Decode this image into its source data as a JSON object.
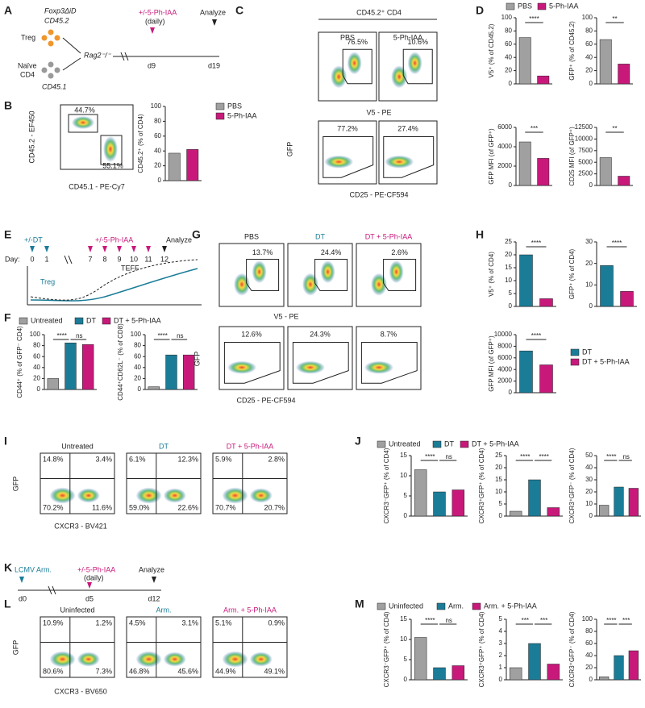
{
  "panel_labels": [
    "A",
    "B",
    "C",
    "D",
    "E",
    "F",
    "G",
    "H",
    "I",
    "J",
    "K",
    "L",
    "M"
  ],
  "schematics": {
    "A": {
      "strain": "Foxp3ΔiD",
      "donor": "CD45.2",
      "treg": "Treg",
      "naive": "Naïve",
      "cd4": "CD4",
      "congenic": "CD45.1",
      "host": "Rag2⁻/⁻",
      "treatment": "+/-5-Ph-IAA",
      "daily": "(daily)",
      "start": "d9",
      "analyze": "Analyze",
      "end": "d19"
    },
    "E": {
      "dt": "+/-DT",
      "treatment": "+/-5-Ph-IAA",
      "analyze": "Analyze",
      "day": "Day:",
      "days": [
        "0",
        "1",
        "7",
        "8",
        "9",
        "10",
        "11",
        "12"
      ],
      "treg": "Treg",
      "teff": "TEFF"
    },
    "K": {
      "infection": "LCMV Arm.",
      "treatment": "+/-5-Ph-IAA",
      "daily": "(daily)",
      "analyze": "Analyze",
      "days": [
        "d0",
        "d5",
        "d12"
      ]
    }
  },
  "flow": [
    {
      "gates": [
        [
          "44.7%",
          "55.1%"
        ]
      ],
      "x_label": "CD45.1 - PE-Cy7",
      "y_label": "CD45.2 - EF450"
    },
    {
      "title": "CD45.2⁺ CD4",
      "headers": [
        "PBS",
        "5-Ph-IAA"
      ],
      "gates": [
        [
          "76.5%"
        ],
        [
          "10.6%"
        ]
      ],
      "x_label": "V5 - PE"
    },
    {
      "gates": [
        [
          "77.2%"
        ],
        [
          "27.4%"
        ]
      ],
      "x_label": "CD25 - PE-CF594",
      "y_label": "GFP"
    },
    {
      "headers": [
        "PBS",
        "DT",
        "DT + 5-Ph-IAA"
      ],
      "gates": [
        [
          "13.7%"
        ],
        [
          "24.4%"
        ],
        [
          "2.6%"
        ]
      ],
      "x_label": "V5 - PE"
    },
    {
      "gates": [
        [
          "12.6%"
        ],
        [
          "24.3%"
        ],
        [
          "8.7%"
        ]
      ],
      "x_label": "CD25 - PE-CF594",
      "y_label": "GFP"
    },
    {
      "headers": [
        "Untreated",
        "DT",
        "DT + 5-Ph-IAA"
      ],
      "gates": [
        [
          "14.8%",
          "3.4%",
          "70.2%",
          "11.6%"
        ],
        [
          "6.1%",
          "12.3%",
          "59.0%",
          "22.6%"
        ],
        [
          "5.9%",
          "2.8%",
          "70.7%",
          "20.7%"
        ]
      ],
      "x_label": "CXCR3 - BV421",
      "y_label": "GFP"
    },
    {
      "headers": [
        "Uninfected",
        "Arm.",
        "Arm. + 5-Ph-IAA"
      ],
      "gates": [
        [
          "10.9%",
          "1.2%",
          "80.6%",
          "7.3%"
        ],
        [
          "4.5%",
          "3.1%",
          "46.8%",
          "45.6%"
        ],
        [
          "5.1%",
          "0.9%",
          "44.9%",
          "49.1%"
        ]
      ],
      "x_label": "CXCR3 - BV650",
      "y_label": "GFP"
    }
  ],
  "legends": [
    {
      "names": [
        "PBS",
        "5-Ph-IAA"
      ],
      "colors": [
        "#a0a0a0",
        "#c8197b"
      ]
    },
    {
      "names": [
        "PBS",
        "5-Ph-IAA"
      ],
      "colors": [
        "#a0a0a0",
        "#c8197b"
      ]
    },
    {
      "names": [
        "Untreated",
        "DT",
        "DT + 5-Ph-IAA"
      ],
      "colors": [
        "#a0a0a0",
        "#1b7c98",
        "#c8197b"
      ]
    },
    {
      "names": [
        "DT",
        "DT + 5-Ph-IAA"
      ],
      "colors": [
        "#1b7c98",
        "#c8197b"
      ]
    },
    {
      "names": [
        "Untreated",
        "DT",
        "DT + 5-Ph-IAA"
      ],
      "colors": [
        "#a0a0a0",
        "#1b7c98",
        "#c8197b"
      ]
    },
    {
      "names": [
        "Uninfected",
        "Arm.",
        "Arm. + 5-Ph-IAA"
      ],
      "colors": [
        "#a0a0a0",
        "#1b7c98",
        "#c8197b"
      ]
    }
  ],
  "chart_data": [
    {
      "type": "bar",
      "y_label": "CD45.2⁺ (% of CD4)",
      "categories": [
        null,
        null
      ],
      "values": [
        37,
        42
      ],
      "colors": [
        "#a0a0a0",
        "#c8197b"
      ],
      "ylim": [
        0,
        100
      ],
      "yticks": [
        0,
        20,
        40,
        60,
        80,
        100
      ],
      "significance": []
    },
    {
      "type": "bar",
      "y_label": "V5⁺ (% of CD45.2)",
      "categories": [
        null,
        null
      ],
      "values": [
        70,
        12
      ],
      "colors": [
        "#a0a0a0",
        "#c8197b"
      ],
      "ylim": [
        0,
        100
      ],
      "yticks": [
        0,
        20,
        40,
        60,
        80,
        100
      ],
      "significance": [
        "****"
      ]
    },
    {
      "type": "bar",
      "y_label": "GFP⁺ (% of CD45.2)",
      "categories": [
        null,
        null
      ],
      "values": [
        67,
        30
      ],
      "colors": [
        "#a0a0a0",
        "#c8197b"
      ],
      "ylim": [
        0,
        100
      ],
      "yticks": [
        0,
        20,
        40,
        60,
        80,
        100
      ],
      "significance": [
        "**"
      ]
    },
    {
      "type": "bar",
      "y_label": "GFP MFI (of GFP⁺)",
      "categories": [
        null,
        null
      ],
      "values": [
        4500,
        2800
      ],
      "colors": [
        "#a0a0a0",
        "#c8197b"
      ],
      "ylim": [
        0,
        6000
      ],
      "yticks": [
        0,
        2000,
        4000,
        6000
      ],
      "significance": [
        "***"
      ]
    },
    {
      "type": "bar",
      "y_label": "CD25 MFI (of GFP⁺)",
      "categories": [
        null,
        null
      ],
      "values": [
        6000,
        2000
      ],
      "colors": [
        "#a0a0a0",
        "#c8197b"
      ],
      "ylim": [
        0,
        12500
      ],
      "yticks": [
        0,
        2500,
        5000,
        7500,
        10000,
        12500
      ],
      "significance": [
        "**"
      ]
    },
    {
      "type": "bar",
      "y_label": "CD44⁺ (% of GFP⁻ CD4)",
      "categories": [
        null,
        null,
        null
      ],
      "values": [
        20,
        85,
        82
      ],
      "colors": [
        "#a0a0a0",
        "#1b7c98",
        "#c8197b"
      ],
      "ylim": [
        0,
        100
      ],
      "yticks": [
        0,
        20,
        40,
        60,
        80,
        100
      ],
      "significance": [
        "****",
        "ns"
      ]
    },
    {
      "type": "bar",
      "y_label": "CD44⁺CD62L⁻ (% of CD8)",
      "categories": [
        null,
        null,
        null
      ],
      "values": [
        5,
        63,
        63
      ],
      "colors": [
        "#a0a0a0",
        "#1b7c98",
        "#c8197b"
      ],
      "ylim": [
        0,
        100
      ],
      "yticks": [
        0,
        20,
        40,
        60,
        80,
        100
      ],
      "significance": [
        "****",
        "ns"
      ]
    },
    {
      "type": "bar",
      "y_label": "V5⁺ (% of CD4)",
      "categories": [
        null,
        null
      ],
      "values": [
        20,
        3
      ],
      "colors": [
        "#1b7c98",
        "#c8197b"
      ],
      "ylim": [
        0,
        25
      ],
      "yticks": [
        0,
        5,
        10,
        15,
        20,
        25
      ],
      "significance": [
        "****"
      ]
    },
    {
      "type": "bar",
      "y_label": "GFP⁺ (% of CD4)",
      "categories": [
        null,
        null
      ],
      "values": [
        19,
        7
      ],
      "colors": [
        "#1b7c98",
        "#c8197b"
      ],
      "ylim": [
        0,
        30
      ],
      "yticks": [
        0,
        10,
        20,
        30
      ],
      "significance": [
        "****"
      ]
    },
    {
      "type": "bar",
      "y_label": "GFP MFI (of GFP⁺)",
      "categories": [
        null,
        null
      ],
      "values": [
        7200,
        4800
      ],
      "colors": [
        "#1b7c98",
        "#c8197b"
      ],
      "ylim": [
        0,
        10000
      ],
      "yticks": [
        0,
        2000,
        4000,
        6000,
        8000,
        10000
      ],
      "significance": [
        "****"
      ]
    },
    {
      "type": "bar",
      "y_label": "CXCR3⁻GFP⁺ (% of CD4)",
      "categories": [
        null,
        null,
        null
      ],
      "values": [
        11.5,
        6,
        6.5
      ],
      "colors": [
        "#a0a0a0",
        "#1b7c98",
        "#c8197b"
      ],
      "ylim": [
        0,
        15
      ],
      "yticks": [
        0,
        5,
        10,
        15
      ],
      "significance": [
        "****",
        "ns"
      ]
    },
    {
      "type": "bar",
      "y_label": "CXCR3⁺GFP⁺ (% of CD4)",
      "categories": [
        null,
        null,
        null
      ],
      "values": [
        2,
        15,
        3.5
      ],
      "colors": [
        "#a0a0a0",
        "#1b7c98",
        "#c8197b"
      ],
      "ylim": [
        0,
        25
      ],
      "yticks": [
        0,
        5,
        10,
        15,
        20,
        25
      ],
      "significance": [
        "****",
        "****"
      ]
    },
    {
      "type": "bar",
      "y_label": "CXCR3⁺GFP⁻ (% of CD4)",
      "categories": [
        null,
        null,
        null
      ],
      "values": [
        9,
        24,
        23
      ],
      "colors": [
        "#a0a0a0",
        "#1b7c98",
        "#c8197b"
      ],
      "ylim": [
        0,
        50
      ],
      "yticks": [
        0,
        10,
        20,
        30,
        40,
        50
      ],
      "significance": [
        "****",
        "ns"
      ]
    },
    {
      "type": "bar",
      "y_label": "CXCR3⁻GFP⁺ (% of CD4)",
      "categories": [
        null,
        null,
        null
      ],
      "values": [
        10.5,
        3,
        3.5
      ],
      "colors": [
        "#a0a0a0",
        "#1b7c98",
        "#c8197b"
      ],
      "ylim": [
        0,
        15
      ],
      "yticks": [
        0,
        5,
        10,
        15
      ],
      "significance": [
        "****",
        "ns"
      ]
    },
    {
      "type": "bar",
      "y_label": "CXCR3⁺GFP⁺ (% of CD4)",
      "categories": [
        null,
        null,
        null
      ],
      "values": [
        1,
        3,
        1.3
      ],
      "colors": [
        "#a0a0a0",
        "#1b7c98",
        "#c8197b"
      ],
      "ylim": [
        0,
        5
      ],
      "yticks": [
        0,
        1,
        2,
        3,
        4,
        5
      ],
      "significance": [
        "***",
        "***"
      ]
    },
    {
      "type": "bar",
      "y_label": "CXCR3⁺GFP⁻ (% of CD4)",
      "categories": [
        null,
        null,
        null
      ],
      "values": [
        5,
        40,
        48
      ],
      "colors": [
        "#a0a0a0",
        "#1b7c98",
        "#c8197b"
      ],
      "ylim": [
        0,
        100
      ],
      "yticks": [
        0,
        20,
        40,
        60,
        80,
        100
      ],
      "significance": [
        "****",
        "***"
      ]
    }
  ]
}
